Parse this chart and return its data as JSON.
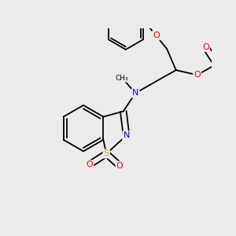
{
  "background_color": "#ebebeb",
  "figsize": [
    3.0,
    3.0
  ],
  "dpi": 100,
  "bond_color": "#000000",
  "bond_width": 1.3,
  "atom_colors": {
    "O": "#ff0000",
    "N": "#0000ff",
    "S": "#ccaa00",
    "Cl": "#00bb00",
    "C": "#000000"
  },
  "font_size": 8.0
}
